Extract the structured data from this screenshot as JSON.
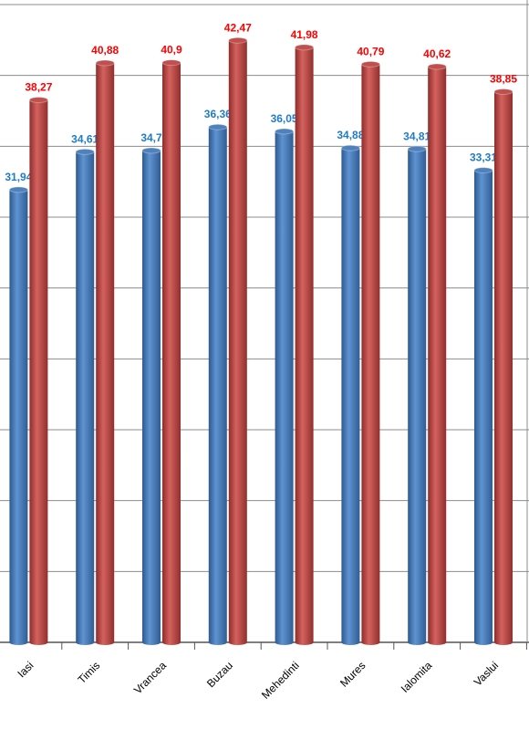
{
  "chart_data": {
    "type": "bar",
    "categories": [
      "Iasi",
      "Timis",
      "Vrancea",
      "Buzau",
      "Mehedinti",
      "Mures",
      "Ialomita",
      "Vaslui"
    ],
    "series": [
      {
        "color": "#4f81bd",
        "label_color": "#1f7cc8",
        "values": [
          31.94,
          34.61,
          34.7,
          36.36,
          36.05,
          34.88,
          34.81,
          33.31
        ],
        "value_labels": [
          "31,94",
          "34,61",
          "34,7",
          "36,36",
          "36,05",
          "34,88",
          "34,81",
          "33,31"
        ]
      },
      {
        "color": "#c0504d",
        "label_color": "#ff0000",
        "values": [
          38.27,
          40.88,
          40.9,
          42.47,
          41.98,
          40.79,
          40.62,
          38.85
        ],
        "value_labels": [
          "38,27",
          "40,88",
          "40,9",
          "42,47",
          "41,98",
          "40,79",
          "40,62",
          "38,85"
        ]
      }
    ],
    "ylim": [
      0,
      45
    ],
    "yticks": [
      0,
      5,
      10,
      15,
      20,
      25,
      30,
      35,
      40,
      45
    ],
    "grid": true
  }
}
